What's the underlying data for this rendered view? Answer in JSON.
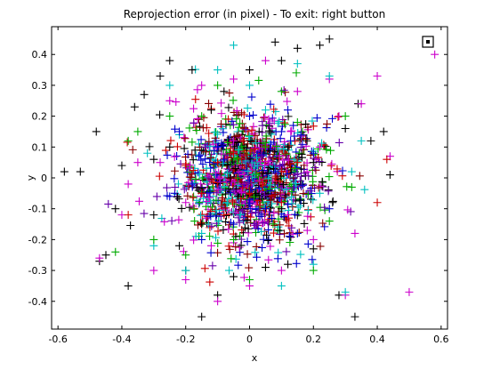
{
  "chart_data": {
    "type": "scatter",
    "title": "Reprojection error (in pixel) - To exit: right button",
    "xlabel": "x",
    "ylabel": "y",
    "xlim": [
      -0.62,
      0.62
    ],
    "ylim": [
      -0.49,
      0.49
    ],
    "x_ticks": [
      -0.6,
      -0.4,
      -0.2,
      0,
      0.2,
      0.4,
      0.6
    ],
    "y_ticks": [
      -0.4,
      -0.3,
      -0.2,
      -0.1,
      0,
      0.1,
      0.2,
      0.3,
      0.4
    ],
    "x_tick_labels": [
      "-0.6",
      "-0.4",
      "-0.2",
      "0",
      "0.2",
      "0.4",
      "0.6"
    ],
    "y_tick_labels": [
      "-0.4",
      "-0.3",
      "-0.2",
      "-0.1",
      "0",
      "0.1",
      "0.2",
      "0.3",
      "0.4"
    ],
    "grid": false,
    "legend": "none",
    "marker": "+",
    "series_colors": [
      "#000000",
      "#cc00cc",
      "#00c0c0",
      "#0000cc",
      "#cc0000",
      "#00aa00"
    ],
    "series": [
      {
        "color": "#000000",
        "x": [
          -0.58,
          -0.53,
          -0.48,
          -0.45,
          -0.42,
          -0.38,
          -0.36,
          -0.33,
          -0.3,
          -0.28,
          -0.25,
          -0.22,
          -0.2,
          -0.18,
          -0.15,
          -0.12,
          -0.1,
          -0.08,
          -0.05,
          0.0,
          0.03,
          0.05,
          0.08,
          0.1,
          0.12,
          0.15,
          0.18,
          0.2,
          0.22,
          0.25,
          0.28,
          0.3,
          0.33,
          0.38,
          0.42,
          0.44,
          -0.47,
          -0.4,
          -0.3,
          -0.06,
          0.02,
          0.12,
          0.2,
          -0.15,
          0.1,
          -0.25,
          0.26,
          0.34
        ],
        "y": [
          0.02,
          0.02,
          0.15,
          -0.25,
          -0.1,
          -0.35,
          0.23,
          0.27,
          -0.12,
          0.33,
          0.38,
          -0.22,
          -0.3,
          0.35,
          -0.45,
          0.22,
          -0.38,
          0.28,
          -0.32,
          0.35,
          0.15,
          -0.29,
          0.44,
          0.38,
          -0.28,
          0.42,
          0.12,
          -0.23,
          0.43,
          0.45,
          -0.38,
          0.16,
          -0.45,
          0.12,
          0.15,
          0.01,
          -0.27,
          0.04,
          0.06,
          0.0,
          -0.05,
          0.1,
          0.05,
          -0.15,
          -0.1,
          0.1,
          -0.08,
          0.24
        ]
      },
      {
        "color": "#cc00cc",
        "x": [
          -0.47,
          -0.4,
          -0.35,
          -0.3,
          -0.25,
          -0.2,
          -0.15,
          -0.1,
          -0.05,
          0.0,
          0.05,
          0.1,
          0.15,
          0.2,
          0.25,
          0.3,
          0.35,
          0.4,
          0.44,
          0.5,
          0.58,
          -0.28,
          -0.12,
          0.06,
          0.18,
          0.28,
          -0.38,
          0.33,
          -0.05,
          0.12,
          -0.2,
          0.22
        ],
        "y": [
          -0.26,
          -0.12,
          0.05,
          -0.3,
          0.25,
          -0.33,
          0.3,
          -0.4,
          0.32,
          -0.35,
          0.38,
          -0.3,
          0.28,
          -0.2,
          0.32,
          -0.38,
          0.24,
          0.33,
          0.07,
          -0.37,
          0.4,
          0.05,
          -0.22,
          0.19,
          0.02,
          0.2,
          -0.02,
          -0.18,
          0.12,
          -0.12,
          -0.08,
          0.1
        ]
      },
      {
        "color": "#00c0c0",
        "x": [
          -0.3,
          -0.25,
          -0.2,
          -0.1,
          -0.05,
          0.0,
          0.1,
          0.15,
          0.2,
          0.25,
          0.3,
          0.35,
          -0.32,
          -0.15,
          0.05,
          0.22,
          0.32,
          -0.03,
          0.14,
          -0.22
        ],
        "y": [
          -0.22,
          0.3,
          -0.3,
          0.35,
          0.43,
          0.3,
          -0.35,
          0.37,
          -0.28,
          0.33,
          -0.37,
          0.12,
          0.08,
          -0.18,
          0.22,
          -0.05,
          0.02,
          -0.12,
          0.06,
          0.14
        ]
      },
      {
        "color": "#0000cc",
        "x": [
          -0.22,
          -0.15,
          -0.1,
          -0.05,
          0.0,
          0.05,
          0.1,
          0.15,
          0.2,
          -0.18,
          0.08,
          0.25,
          -0.08,
          0.12,
          -0.25
        ],
        "y": [
          0.15,
          -0.2,
          0.1,
          -0.15,
          0.2,
          -0.1,
          0.15,
          -0.18,
          0.08,
          -0.02,
          0.02,
          -0.1,
          0.06,
          0.22,
          -0.06
        ]
      },
      {
        "color": "#cc0000",
        "x": [
          -0.38,
          -0.1,
          -0.05,
          0.0,
          0.05,
          0.1,
          -0.15,
          0.15,
          0.43,
          0.4,
          -0.02,
          0.08,
          -0.08
        ],
        "y": [
          -0.12,
          0.05,
          0.08,
          -0.05,
          0.1,
          -0.08,
          -0.05,
          0.05,
          0.06,
          -0.08,
          0.12,
          0.0,
          -0.12
        ]
      },
      {
        "color": "#00aa00",
        "x": [
          -0.42,
          -0.38,
          -0.35,
          -0.3,
          -0.25,
          -0.2,
          -0.1,
          0.0,
          0.1,
          0.2,
          0.3,
          0.32,
          -0.05,
          0.15,
          0.25,
          -0.15,
          0.05
        ],
        "y": [
          -0.24,
          0.12,
          0.15,
          -0.2,
          0.2,
          -0.25,
          0.3,
          -0.33,
          0.28,
          -0.3,
          0.2,
          -0.03,
          -0.2,
          0.18,
          -0.14,
          0.2,
          0.1
        ]
      }
    ],
    "dense_cluster": {
      "colors": [
        "#000000",
        "#cc00cc",
        "#00c0c0",
        "#0000cc",
        "#cc0000",
        "#00aa00",
        "#6600aa",
        "#880000"
      ],
      "center": [
        0.0,
        0.0
      ],
      "std": [
        0.11,
        0.1
      ],
      "count": 1400
    }
  },
  "toolbar_icon": {
    "name": "data-cursor-icon",
    "symbol": "⊡"
  }
}
